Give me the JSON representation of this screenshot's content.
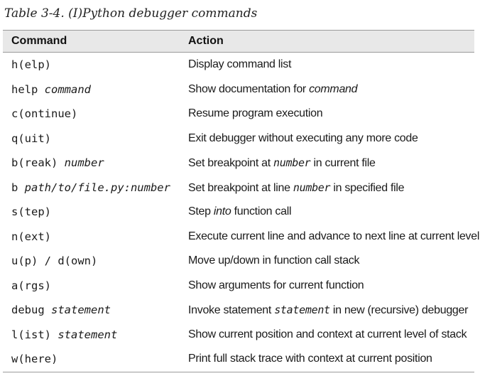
{
  "caption": "Table 3-4. (I)Python debugger commands",
  "table": {
    "headers": {
      "command": "Command",
      "action": "Action"
    },
    "rows": [
      {
        "cmd": [
          {
            "t": "h(elp)"
          }
        ],
        "act": [
          {
            "t": "Display command list"
          }
        ]
      },
      {
        "cmd": [
          {
            "t": "help "
          },
          {
            "t": "command",
            "i": true
          }
        ],
        "act": [
          {
            "t": "Show documentation for "
          },
          {
            "t": "command",
            "i": true
          }
        ]
      },
      {
        "cmd": [
          {
            "t": "c(ontinue)"
          }
        ],
        "act": [
          {
            "t": "Resume program execution"
          }
        ]
      },
      {
        "cmd": [
          {
            "t": "q(uit)"
          }
        ],
        "act": [
          {
            "t": "Exit debugger without executing any more code"
          }
        ]
      },
      {
        "cmd": [
          {
            "t": "b(reak) "
          },
          {
            "t": "number",
            "i": true
          }
        ],
        "act": [
          {
            "t": "Set breakpoint at "
          },
          {
            "t": "number",
            "i": true,
            "m": true
          },
          {
            "t": " in current file"
          }
        ]
      },
      {
        "cmd": [
          {
            "t": "b "
          },
          {
            "t": "path/to/file.py:number",
            "i": true
          }
        ],
        "act": [
          {
            "t": "Set breakpoint at line "
          },
          {
            "t": "number",
            "i": true,
            "m": true
          },
          {
            "t": " in specified file"
          }
        ]
      },
      {
        "cmd": [
          {
            "t": "s(tep)"
          }
        ],
        "act": [
          {
            "t": "Step "
          },
          {
            "t": "into",
            "i": true
          },
          {
            "t": " function call"
          }
        ]
      },
      {
        "cmd": [
          {
            "t": "n(ext)"
          }
        ],
        "act": [
          {
            "t": "Execute current line and advance to next line at current level"
          }
        ]
      },
      {
        "cmd": [
          {
            "t": "u(p) / d(own)"
          }
        ],
        "act": [
          {
            "t": "Move up/down in function call stack"
          }
        ]
      },
      {
        "cmd": [
          {
            "t": "a(rgs)"
          }
        ],
        "act": [
          {
            "t": "Show arguments for current function"
          }
        ]
      },
      {
        "cmd": [
          {
            "t": "debug "
          },
          {
            "t": "statement",
            "i": true
          }
        ],
        "act": [
          {
            "t": "Invoke statement "
          },
          {
            "t": "statement",
            "i": true,
            "m": true
          },
          {
            "t": " in new (recursive) debugger"
          }
        ]
      },
      {
        "cmd": [
          {
            "t": "l(ist) "
          },
          {
            "t": "statement",
            "i": true
          }
        ],
        "act": [
          {
            "t": "Show current position and context at current level of stack"
          }
        ]
      },
      {
        "cmd": [
          {
            "t": "w(here)"
          }
        ],
        "act": [
          {
            "t": "Print full stack trace with context at current position"
          }
        ]
      }
    ]
  }
}
